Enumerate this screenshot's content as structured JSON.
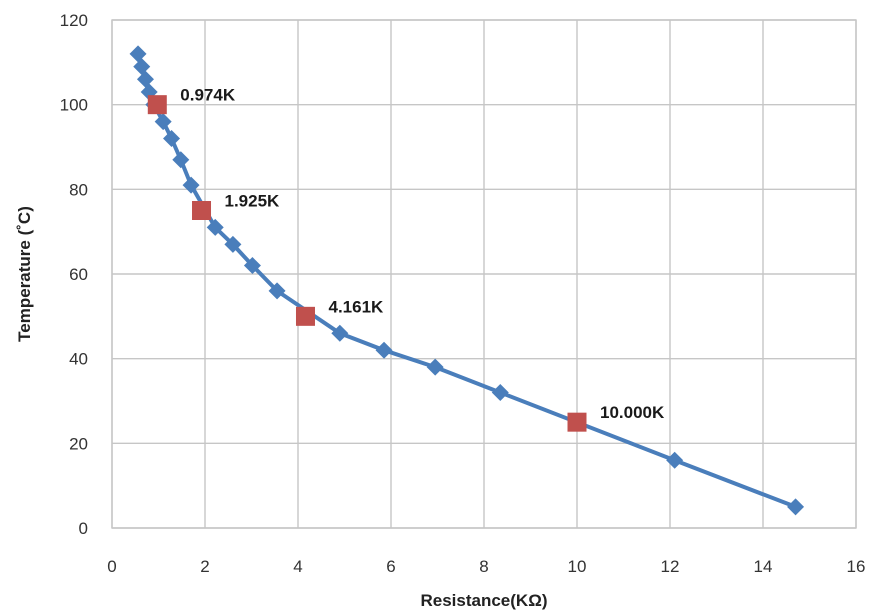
{
  "chart_data": {
    "type": "scatter",
    "title": "",
    "xlabel": "Resistance(KΩ)",
    "ylabel": "Temperature (˚C)",
    "xlim": [
      0,
      16
    ],
    "ylim": [
      0,
      120
    ],
    "xticks": [
      0,
      2,
      4,
      6,
      8,
      10,
      12,
      14,
      16
    ],
    "yticks": [
      0,
      20,
      40,
      60,
      80,
      100,
      120
    ],
    "grid": true,
    "legend": "none",
    "series": [
      {
        "marker": "diamond",
        "color": "#4a7ebb",
        "line": true,
        "x": [
          0.56,
          0.64,
          0.72,
          0.8,
          0.9,
          1.1,
          1.28,
          1.48,
          1.7,
          2.22,
          2.6,
          3.02,
          3.55,
          4.9,
          5.85,
          6.95,
          8.35,
          12.1,
          14.7
        ],
        "y": [
          112,
          109,
          106,
          103,
          100,
          96,
          92,
          87,
          81,
          71,
          67,
          62,
          56,
          46,
          42,
          38,
          32,
          16,
          5
        ]
      },
      {
        "marker": "square",
        "color": "#c0504d",
        "line": false,
        "x": [
          0.974,
          1.925,
          4.161,
          10.0
        ],
        "y": [
          100,
          75,
          50,
          25
        ],
        "labels": [
          "0.974K",
          "1.925K",
          "4.161K",
          "10.000K"
        ]
      }
    ]
  }
}
